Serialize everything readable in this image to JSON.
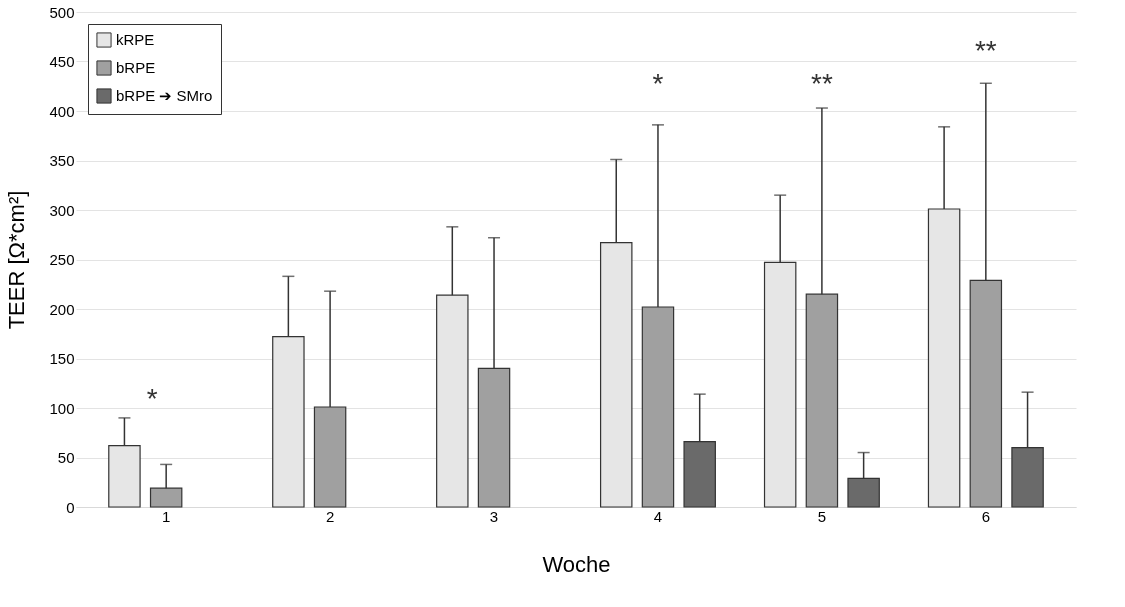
{
  "chart_data": {
    "type": "bar",
    "xlabel": "Woche",
    "ylabel": "TEER [Ω*cm²]",
    "categories": [
      "1",
      "2",
      "3",
      "4",
      "5",
      "6"
    ],
    "series": [
      {
        "name": "kRPE",
        "color": "#e6e6e6",
        "values": [
          62,
          172,
          214,
          267,
          247,
          301
        ],
        "errors": [
          [
            62,
            90
          ],
          [
            172,
            233
          ],
          [
            214,
            283
          ],
          [
            267,
            351
          ],
          [
            247,
            315
          ],
          [
            301,
            384
          ]
        ]
      },
      {
        "name": "bRPE",
        "color": "#a0a0a0",
        "values": [
          19,
          101,
          140,
          202,
          215,
          229
        ],
        "errors": [
          [
            19,
            43
          ],
          [
            101,
            218
          ],
          [
            140,
            272
          ],
          [
            202,
            386
          ],
          [
            215,
            403
          ],
          [
            229,
            428
          ]
        ]
      },
      {
        "name": "bRPE ➔ SMro",
        "color": "#6a6a6a",
        "values": [
          null,
          null,
          null,
          66,
          29,
          60
        ],
        "errors": [
          null,
          null,
          null,
          [
            66,
            114
          ],
          [
            29,
            55
          ],
          [
            60,
            116
          ]
        ]
      }
    ],
    "ylim": [
      0,
      500
    ],
    "yticks": [
      0,
      50,
      100,
      150,
      200,
      250,
      300,
      350,
      400,
      450,
      500
    ],
    "grid": "y",
    "legend": "top left",
    "annotations": [
      "*",
      "*",
      "**",
      "**"
    ]
  }
}
